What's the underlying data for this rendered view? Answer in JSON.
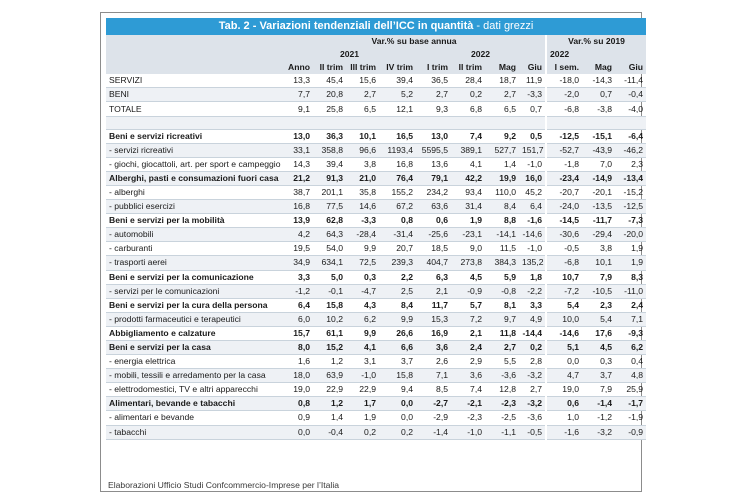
{
  "title": {
    "bold": "Tab. 2 - Variazioni tendenziali dell’ICC in quantità",
    "rest": " - dati grezzi"
  },
  "headers": {
    "group1": "Var.% su base annua",
    "group2": "Var.% su 2019",
    "year2021": "2021",
    "year2022a": "2022",
    "year2022b": "2022",
    "cols": [
      "Anno",
      "II trim",
      "III trim",
      "IV trim",
      "I trim",
      "II trim",
      "Mag",
      "Giu",
      "I sem.",
      "Mag",
      "Giu"
    ]
  },
  "rows": [
    {
      "label": "SERVIZI",
      "v": [
        "13,3",
        "45,4",
        "15,6",
        "39,4",
        "36,5",
        "28,4",
        "18,7",
        "11,9",
        "-18,0",
        "-14,3",
        "-11,4"
      ],
      "style": "plain"
    },
    {
      "label": "BENI",
      "v": [
        "7,7",
        "20,8",
        "2,7",
        "5,2",
        "2,7",
        "0,2",
        "2,7",
        "-3,3",
        "-2,0",
        "0,7",
        "-0,4"
      ],
      "style": "plain"
    },
    {
      "label": "TOTALE",
      "v": [
        "9,1",
        "25,8",
        "6,5",
        "12,1",
        "9,3",
        "6,8",
        "6,5",
        "0,7",
        "-6,8",
        "-3,8",
        "-4,0"
      ],
      "style": "plain"
    },
    {
      "label": "",
      "v": [
        "",
        "",
        "",
        "",
        "",
        "",
        "",
        "",
        "",
        "",
        ""
      ],
      "style": "blank"
    },
    {
      "label": "Beni e servizi ricreativi",
      "v": [
        "13,0",
        "36,3",
        "10,1",
        "16,5",
        "13,0",
        "7,4",
        "9,2",
        "0,5",
        "-12,5",
        "-15,1",
        "-6,4"
      ],
      "style": "bold"
    },
    {
      "label": "- servizi ricreativi",
      "v": [
        "33,1",
        "358,8",
        "96,6",
        "1193,4",
        "5595,5",
        "389,1",
        "527,7",
        "151,7",
        "-52,7",
        "-43,9",
        "-46,2"
      ],
      "style": "plain"
    },
    {
      "label": "- giochi, giocattoli, art. per sport e campeggio",
      "v": [
        "14,3",
        "39,4",
        "3,8",
        "16,8",
        "13,6",
        "4,1",
        "1,4",
        "-1,0",
        "-1,8",
        "7,0",
        "2,3"
      ],
      "style": "plain"
    },
    {
      "label": "Alberghi, pasti e consumazioni fuori casa",
      "v": [
        "21,2",
        "91,3",
        "21,0",
        "76,4",
        "79,1",
        "42,2",
        "19,9",
        "16,0",
        "-23,4",
        "-14,9",
        "-13,4"
      ],
      "style": "bold"
    },
    {
      "label": "- alberghi",
      "v": [
        "38,7",
        "201,1",
        "35,8",
        "155,2",
        "234,2",
        "93,4",
        "110,0",
        "45,2",
        "-20,7",
        "-20,1",
        "-15,2"
      ],
      "style": "plain"
    },
    {
      "label": "- pubblici esercizi",
      "v": [
        "16,8",
        "77,5",
        "14,6",
        "67,2",
        "63,6",
        "31,4",
        "8,4",
        "6,4",
        "-24,0",
        "-13,5",
        "-12,5"
      ],
      "style": "plain"
    },
    {
      "label": "Beni e servizi per la mobilità",
      "v": [
        "13,9",
        "62,8",
        "-3,3",
        "0,8",
        "0,6",
        "1,9",
        "8,8",
        "-1,6",
        "-14,5",
        "-11,7",
        "-7,3"
      ],
      "style": "bold"
    },
    {
      "label": "- automobili",
      "v": [
        "4,2",
        "64,3",
        "-28,4",
        "-31,4",
        "-25,6",
        "-23,1",
        "-14,1",
        "-14,6",
        "-30,6",
        "-29,4",
        "-20,0"
      ],
      "style": "plain"
    },
    {
      "label": "- carburanti",
      "v": [
        "19,5",
        "54,0",
        "9,9",
        "20,7",
        "18,5",
        "9,0",
        "11,5",
        "-1,0",
        "-0,5",
        "3,8",
        "1,9"
      ],
      "style": "plain"
    },
    {
      "label": "- trasporti aerei",
      "v": [
        "34,9",
        "634,1",
        "72,5",
        "239,3",
        "404,7",
        "273,8",
        "384,3",
        "135,2",
        "-6,8",
        "10,1",
        "1,9"
      ],
      "style": "plain"
    },
    {
      "label": "Beni e servizi per la comunicazione",
      "v": [
        "3,3",
        "5,0",
        "0,3",
        "2,2",
        "6,3",
        "4,5",
        "5,9",
        "1,8",
        "10,7",
        "7,9",
        "8,3"
      ],
      "style": "bold"
    },
    {
      "label": "- servizi per le comunicazioni",
      "v": [
        "-1,2",
        "-0,1",
        "-4,7",
        "2,5",
        "2,1",
        "-0,9",
        "-0,8",
        "-2,2",
        "-7,2",
        "-10,5",
        "-11,0"
      ],
      "style": "plain"
    },
    {
      "label": "Beni e servizi per la cura della persona",
      "v": [
        "6,4",
        "15,8",
        "4,3",
        "8,4",
        "11,7",
        "5,7",
        "8,1",
        "3,3",
        "5,4",
        "2,3",
        "2,4"
      ],
      "style": "bold"
    },
    {
      "label": "- prodotti farmaceutici e terapeutici",
      "v": [
        "6,0",
        "10,2",
        "6,2",
        "9,9",
        "15,3",
        "7,2",
        "9,7",
        "4,9",
        "10,0",
        "5,4",
        "7,1"
      ],
      "style": "plain"
    },
    {
      "label": "Abbigliamento e calzature",
      "v": [
        "15,7",
        "61,1",
        "9,9",
        "26,6",
        "16,9",
        "2,1",
        "11,8",
        "-14,4",
        "-14,6",
        "17,6",
        "-9,3"
      ],
      "style": "bold"
    },
    {
      "label": "Beni e servizi per la casa",
      "v": [
        "8,0",
        "15,2",
        "4,1",
        "6,6",
        "3,6",
        "2,4",
        "2,7",
        "0,2",
        "5,1",
        "4,5",
        "6,2"
      ],
      "style": "bold"
    },
    {
      "label": "- energia elettrica",
      "v": [
        "1,6",
        "1,2",
        "3,1",
        "3,7",
        "2,6",
        "2,9",
        "5,5",
        "2,8",
        "0,0",
        "0,3",
        "0,4"
      ],
      "style": "plain"
    },
    {
      "label": "- mobili, tessili e arredamento per la casa",
      "v": [
        "18,0",
        "63,9",
        "-1,0",
        "15,8",
        "7,1",
        "3,6",
        "-3,6",
        "-3,2",
        "4,7",
        "3,7",
        "4,8"
      ],
      "style": "plain"
    },
    {
      "label": "- elettrodomestici, TV e altri apparecchi",
      "v": [
        "19,0",
        "22,9",
        "22,9",
        "9,4",
        "8,5",
        "7,4",
        "12,8",
        "2,7",
        "19,0",
        "7,9",
        "25,9"
      ],
      "style": "plain"
    },
    {
      "label": "Alimentari, bevande e tabacchi",
      "v": [
        "0,8",
        "1,2",
        "1,7",
        "0,0",
        "-2,7",
        "-2,1",
        "-2,3",
        "-3,2",
        "0,6",
        "-1,4",
        "-1,7"
      ],
      "style": "bold"
    },
    {
      "label": "- alimentari e bevande",
      "v": [
        "0,9",
        "1,4",
        "1,9",
        "0,0",
        "-2,9",
        "-2,3",
        "-2,5",
        "-3,6",
        "1,0",
        "-1,2",
        "-1,9"
      ],
      "style": "plain"
    },
    {
      "label": "- tabacchi",
      "v": [
        "0,0",
        "-0,4",
        "0,2",
        "0,2",
        "-1,4",
        "-1,0",
        "-1,1",
        "-0,5",
        "-1,6",
        "-3,2",
        "-0,9"
      ],
      "style": "plain"
    }
  ],
  "footnote": "Elaborazioni Ufficio Studi Confcommercio-Imprese per l’Italia",
  "colors": {
    "title_bg": "#2e9bd5",
    "header_bg": "#dde3ea",
    "alt_row_bg": "#eef1f5"
  }
}
